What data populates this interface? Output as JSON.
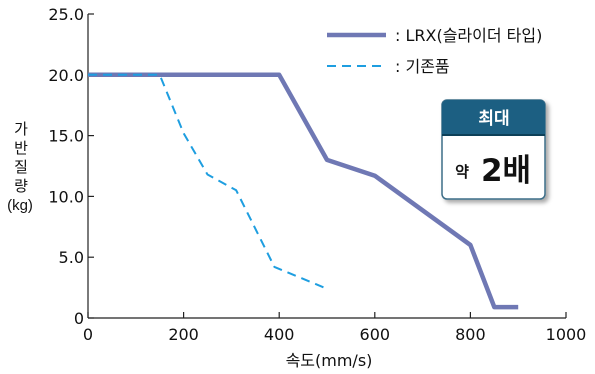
{
  "chart_data": {
    "type": "line",
    "title": "",
    "xlabel": "속도(mm/s)",
    "ylabel": "가반질량",
    "ylabel_unit": "(kg)",
    "xlim": [
      0,
      1000
    ],
    "ylim": [
      0,
      25
    ],
    "x_ticks": [
      "0",
      "200",
      "400",
      "600",
      "800",
      "1000"
    ],
    "y_ticks": [
      "0",
      "5.0",
      "10.0",
      "15.0",
      "20.0",
      "25.0"
    ],
    "grid": false,
    "legend_position": "top-right",
    "series": [
      {
        "name": "LRX(슬라이더 타입)",
        "legend_prefix": ": ",
        "color": "#6f78b4",
        "style": "solid",
        "x": [
          0,
          400,
          500,
          600,
          800,
          850,
          900
        ],
        "y": [
          20,
          20,
          13,
          11.7,
          6,
          0.9,
          0.9
        ]
      },
      {
        "name": "기존품",
        "legend_prefix": ": ",
        "color": "#1e9ee0",
        "style": "dashed",
        "x": [
          0,
          150,
          200,
          250,
          310,
          390,
          500
        ],
        "y": [
          20,
          20,
          15.2,
          11.8,
          10.5,
          4.2,
          2.4
        ]
      }
    ]
  },
  "badge": {
    "top_label": "최대",
    "prefix": "약",
    "value": "2배",
    "top_color": "#1b5f82",
    "bottom_color": "#ffffff"
  }
}
